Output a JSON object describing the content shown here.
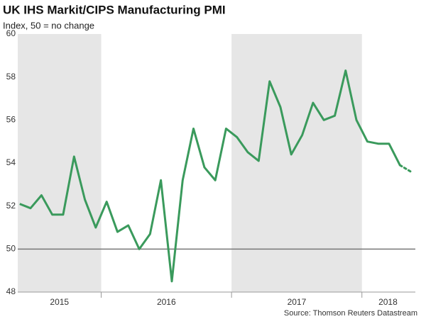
{
  "chart_data": {
    "type": "line",
    "title": "UK IHS Markit/CIPS Manufacturing PMI",
    "subtitle": "Index, 50 = no change",
    "source": "Source: Thomson Reuters Datastream",
    "x": [
      2015.375,
      2015.458,
      2015.542,
      2015.625,
      2015.708,
      2015.792,
      2015.875,
      2015.958,
      2016.042,
      2016.125,
      2016.208,
      2016.292,
      2016.375,
      2016.458,
      2016.542,
      2016.625,
      2016.708,
      2016.792,
      2016.875,
      2016.958,
      2017.042,
      2017.125,
      2017.208,
      2017.292,
      2017.375,
      2017.458,
      2017.542,
      2017.625,
      2017.708,
      2017.792,
      2017.875,
      2017.958,
      2018.042,
      2018.125,
      2018.208,
      2018.292,
      2018.375
    ],
    "series": [
      {
        "color": "#3a9a5c",
        "values": [
          52.1,
          51.9,
          52.5,
          51.6,
          51.6,
          54.3,
          52.3,
          51.0,
          52.2,
          50.8,
          51.1,
          50.0,
          50.7,
          53.2,
          48.5,
          53.2,
          55.6,
          53.8,
          53.2,
          55.6,
          55.2,
          54.5,
          54.1,
          57.8,
          56.6,
          54.4,
          55.3,
          56.8,
          56.0,
          56.2,
          58.3,
          56.0,
          55.0,
          54.9,
          54.9,
          53.9,
          53.6
        ]
      }
    ],
    "dotted_last": true,
    "xlim": [
      2015.36,
      2018.41
    ],
    "xticks": [
      {
        "value": 2015.68,
        "label": "2015"
      },
      {
        "value": 2016.5,
        "label": "2016"
      },
      {
        "value": 2017.5,
        "label": "2017"
      },
      {
        "value": 2018.2,
        "label": "2018"
      }
    ],
    "year_boundaries": [
      2016,
      2017,
      2018
    ],
    "shaded_spans": [
      [
        2015.36,
        2016
      ],
      [
        2017,
        2018
      ]
    ],
    "shade_color": "#e6e6e6",
    "ylim": [
      48,
      60
    ],
    "yticks": [
      48,
      50,
      52,
      54,
      56,
      58,
      60
    ],
    "reference_line": 50
  }
}
